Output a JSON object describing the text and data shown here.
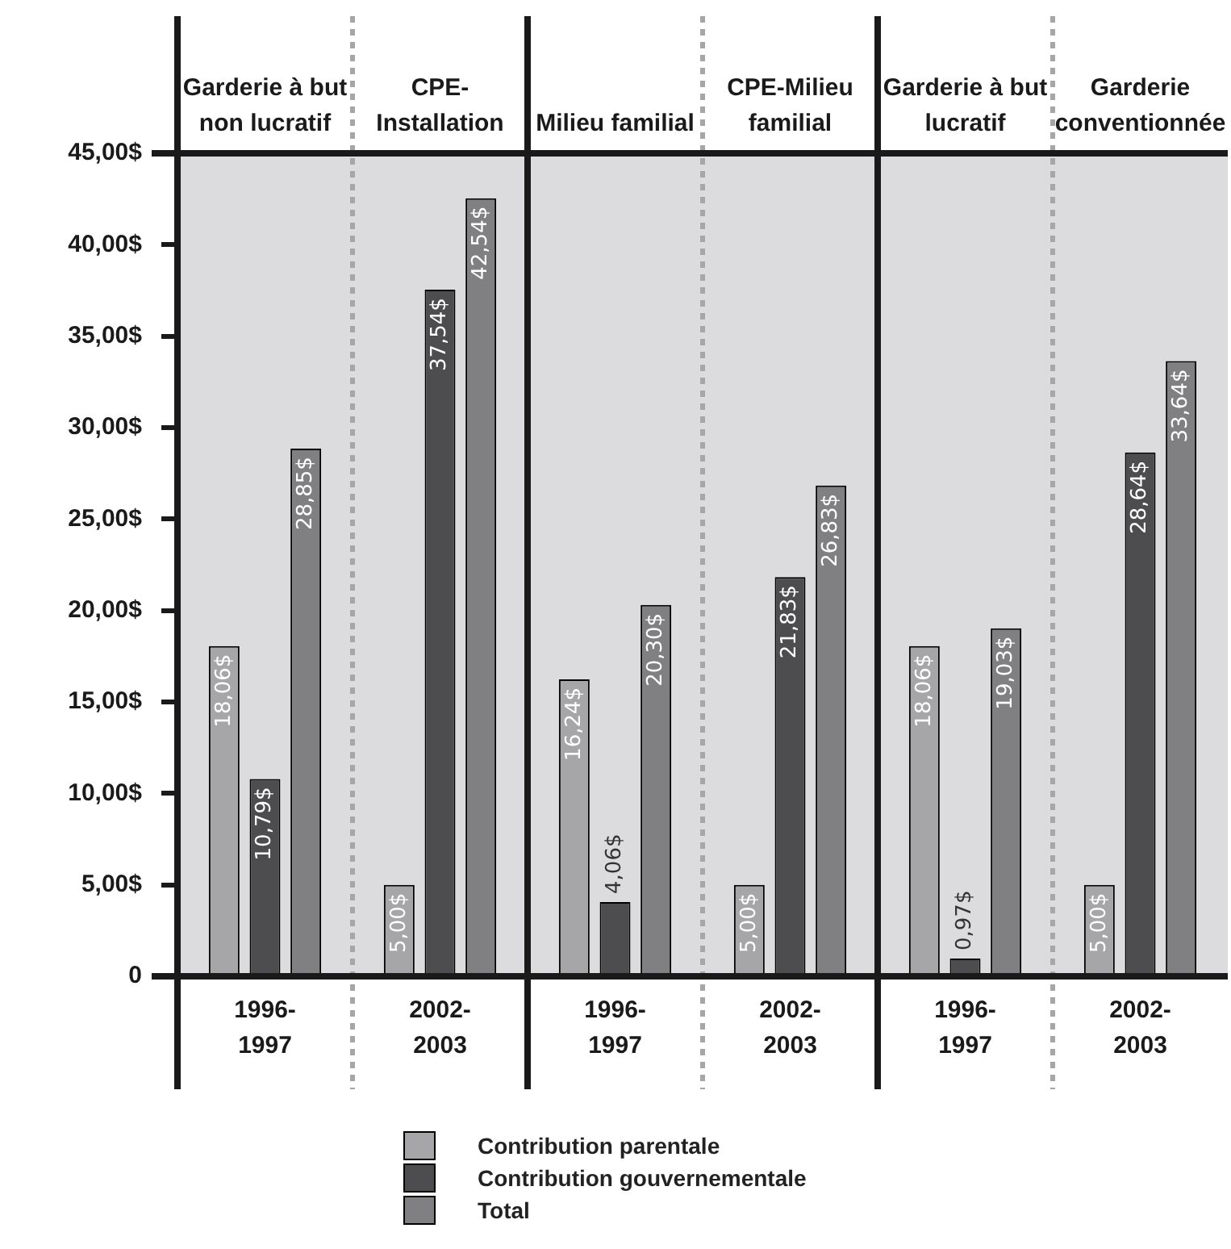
{
  "chart_data": {
    "type": "bar",
    "categories": [
      "Garderie à but non lucratif",
      "CPE-Installation",
      "Milieu familial",
      "CPE-Milieu familial",
      "Garderie à but lucratif",
      "Garderie conventionnée"
    ],
    "series": [
      {
        "name": "Contribution parentale",
        "color": "#a6a6a8",
        "values": [
          18.06,
          5.0,
          16.24,
          5.0,
          18.06,
          5.0
        ],
        "value_labels": [
          "18,06$",
          "5,00$",
          "16,24$",
          "5,00$",
          "18,06$",
          "5,00$"
        ]
      },
      {
        "name": "Contribution gouvernementale",
        "color": "#4d4d4f",
        "values": [
          10.79,
          37.54,
          4.06,
          21.83,
          0.97,
          28.64
        ],
        "value_labels": [
          "10,79$",
          "37,54$",
          "4,06$",
          "21,83$",
          "0,97$",
          "28,64$"
        ]
      },
      {
        "name": "Total",
        "color": "#808082",
        "values": [
          28.85,
          42.54,
          20.3,
          26.83,
          19.03,
          33.64
        ],
        "value_labels": [
          "28,85$",
          "42,54$",
          "20,30$",
          "26,83$",
          "19,03$",
          "33,64$"
        ]
      }
    ],
    "ylim": [
      0,
      45
    ],
    "yticks": [
      {
        "value": 0,
        "label": "0"
      },
      {
        "value": 5,
        "label": "5,00$"
      },
      {
        "value": 10,
        "label": "10,00$"
      },
      {
        "value": 15,
        "label": "15,00$"
      },
      {
        "value": 20,
        "label": "20,00$"
      },
      {
        "value": 25,
        "label": "25,00$"
      },
      {
        "value": 30,
        "label": "30,00$"
      },
      {
        "value": 35,
        "label": "35,00$"
      },
      {
        "value": 40,
        "label": "40,00$"
      },
      {
        "value": 45,
        "label": "45,00$"
      }
    ],
    "annotations": [
      "1996-1997",
      "2002-2003",
      "1996-1997",
      "2002-2003",
      "1996-1997",
      "2002-2003"
    ],
    "legend": "bottom"
  }
}
